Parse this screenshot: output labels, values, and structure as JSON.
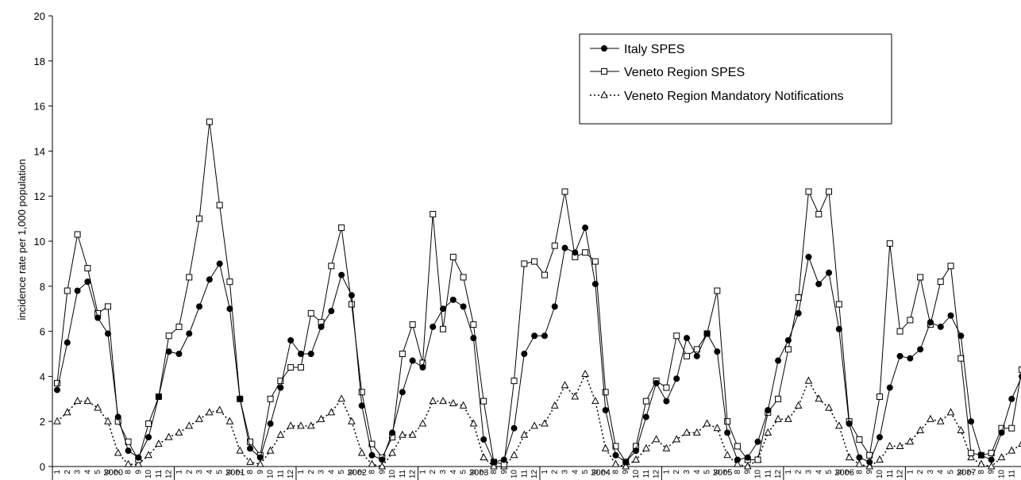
{
  "chart_data": {
    "type": "line",
    "title": "",
    "ylabel": "incidence rate per 1,000 population",
    "xlabel": "",
    "ylim": [
      0,
      20
    ],
    "yticks": [
      0,
      2,
      4,
      6,
      8,
      10,
      12,
      14,
      16,
      18,
      20
    ],
    "grid": false,
    "legend_position": "top-right",
    "years": [
      "2000",
      "2001",
      "2002",
      "2003",
      "2004",
      "2005",
      "2006",
      "2007"
    ],
    "months": [
      "1",
      "2",
      "3",
      "4",
      "5",
      "6",
      "7",
      "8",
      "9",
      "10",
      "11",
      "12"
    ],
    "series": [
      {
        "name": "Italy SPES",
        "marker": "filled-circle",
        "line": "solid",
        "values": [
          3.4,
          5.5,
          7.8,
          8.2,
          6.6,
          5.9,
          2.2,
          0.7,
          0.4,
          1.3,
          3.1,
          5.1,
          5.0,
          5.9,
          7.1,
          8.3,
          9.0,
          7.0,
          3.0,
          0.8,
          0.4,
          1.9,
          3.5,
          5.6,
          5.0,
          5.0,
          6.2,
          6.9,
          8.5,
          7.6,
          2.7,
          0.5,
          0.3,
          1.5,
          3.3,
          4.7,
          4.4,
          6.2,
          7.0,
          7.4,
          7.1,
          5.7,
          1.2,
          0.2,
          0.3,
          1.7,
          5.0,
          5.8,
          5.8,
          7.1,
          9.7,
          9.5,
          10.6,
          8.1,
          2.5,
          0.5,
          0.2,
          0.7,
          2.2,
          3.7,
          2.9,
          3.9,
          5.7,
          4.9,
          5.9,
          5.1,
          1.5,
          0.3,
          0.4,
          1.1,
          2.5,
          4.7,
          5.6,
          6.8,
          9.3,
          8.1,
          8.6,
          6.1,
          1.9,
          0.4,
          0.2,
          1.3,
          3.5,
          4.9,
          4.8,
          5.2,
          6.4,
          6.2,
          6.7,
          5.8,
          2.0,
          0.5,
          0.3,
          1.5,
          3.0,
          4.0
        ]
      },
      {
        "name": "Veneto Region SPES",
        "marker": "open-square",
        "line": "solid",
        "values": [
          3.7,
          7.8,
          10.3,
          8.8,
          6.8,
          7.1,
          2.0,
          1.1,
          0.3,
          1.9,
          3.1,
          5.8,
          6.2,
          8.4,
          11.0,
          15.3,
          11.6,
          8.2,
          3.0,
          1.1,
          0.5,
          3.0,
          3.8,
          4.4,
          4.4,
          6.8,
          6.4,
          8.9,
          10.6,
          7.2,
          3.3,
          1.0,
          0.4,
          1.3,
          5.0,
          6.3,
          4.6,
          11.2,
          6.1,
          9.3,
          8.4,
          6.3,
          2.9,
          0.2,
          0.1,
          3.8,
          9.0,
          9.1,
          8.5,
          9.8,
          12.2,
          9.3,
          9.5,
          9.1,
          3.3,
          0.9,
          0.2,
          0.9,
          2.9,
          3.8,
          3.5,
          5.8,
          4.9,
          5.2,
          5.9,
          7.8,
          2.0,
          0.9,
          0.3,
          0.3,
          2.4,
          3.0,
          5.2,
          7.5,
          12.2,
          11.2,
          12.2,
          7.2,
          2.0,
          1.2,
          0.5,
          3.1,
          9.9,
          6.0,
          6.5,
          8.4,
          6.3,
          8.2,
          8.9,
          4.8,
          0.6,
          0.5,
          0.6,
          1.7,
          1.7,
          4.3
        ]
      },
      {
        "name": "Veneto Region Mandatory Notifications",
        "marker": "open-triangle",
        "line": "dotted",
        "values": [
          2.0,
          2.4,
          2.9,
          2.9,
          2.6,
          2.0,
          0.6,
          0.1,
          0.1,
          0.5,
          1.0,
          1.3,
          1.5,
          1.8,
          2.1,
          2.4,
          2.5,
          2.0,
          0.7,
          0.2,
          0.1,
          0.7,
          1.4,
          1.8,
          1.8,
          1.8,
          2.1,
          2.4,
          3.0,
          2.0,
          0.6,
          0.1,
          0.0,
          0.6,
          1.4,
          1.4,
          1.9,
          2.9,
          2.9,
          2.8,
          2.7,
          1.9,
          0.4,
          0.0,
          0.0,
          0.5,
          1.4,
          1.8,
          1.9,
          2.7,
          3.6,
          3.1,
          4.1,
          2.9,
          0.8,
          0.1,
          0.0,
          0.3,
          0.8,
          1.2,
          0.8,
          1.2,
          1.5,
          1.5,
          1.9,
          1.7,
          0.5,
          0.1,
          0.0,
          0.3,
          1.5,
          2.1,
          2.1,
          2.7,
          3.8,
          3.0,
          2.6,
          1.8,
          0.4,
          0.1,
          0.0,
          0.3,
          0.9,
          0.9,
          1.1,
          1.6,
          2.1,
          2.0,
          2.4,
          1.6,
          0.4,
          0.1,
          0.0,
          0.4,
          0.7,
          1.0
        ]
      }
    ]
  }
}
